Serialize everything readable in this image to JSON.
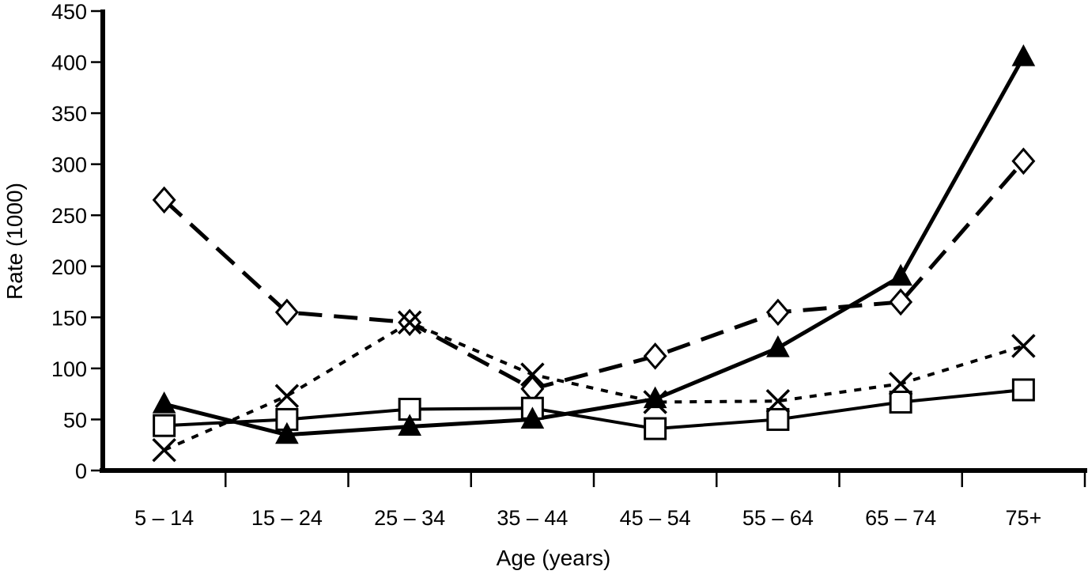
{
  "chart_data": {
    "type": "line",
    "title": "",
    "xlabel": "Age (years)",
    "ylabel": "Rate (1000)",
    "categories": [
      "5 – 14",
      "15 – 24",
      "25 – 34",
      "35 – 44",
      "45 – 54",
      "55 – 64",
      "65 – 74",
      "75+"
    ],
    "yticks": [
      0,
      50,
      100,
      150,
      200,
      250,
      300,
      350,
      400,
      450
    ],
    "ylim": [
      0,
      450
    ],
    "grid": "off",
    "legend": "none",
    "axis_color": "#000000",
    "background_color": "#ffffff",
    "series": [
      {
        "name": "filled-triangle-solid-line",
        "marker": "filled-triangle",
        "line": "solid-thick",
        "color": "#000000",
        "values": [
          65,
          35,
          43,
          50,
          70,
          120,
          190,
          405
        ]
      },
      {
        "name": "open-diamond-long-dash-line",
        "marker": "open-diamond",
        "line": "long-dash",
        "color": "#000000",
        "values": [
          265,
          155,
          145,
          80,
          112,
          155,
          165,
          303
        ]
      },
      {
        "name": "x-cross-short-dash-line",
        "marker": "x-cross",
        "line": "short-dash",
        "color": "#000000",
        "values": [
          20,
          73,
          145,
          94,
          67,
          68,
          85,
          122
        ]
      },
      {
        "name": "open-square-solid-line",
        "marker": "open-square",
        "line": "solid-thin",
        "color": "#000000",
        "values": [
          44,
          50,
          60,
          61,
          41,
          50,
          67,
          79
        ]
      }
    ]
  }
}
